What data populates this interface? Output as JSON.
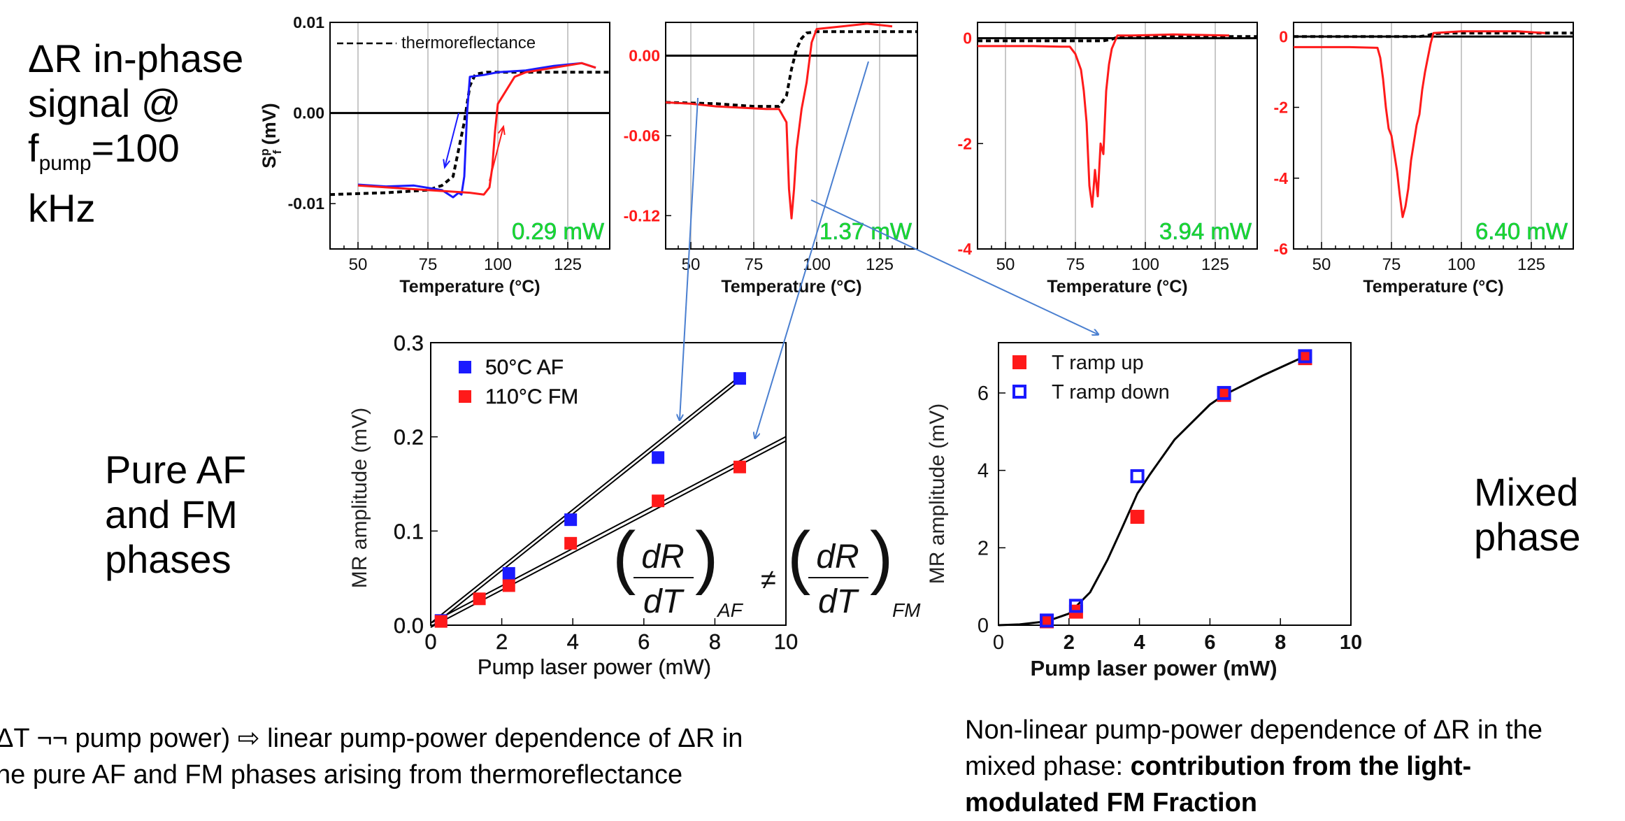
{
  "labels": {
    "top_left_l1": "ΔR in-phase",
    "top_left_l2": "signal @",
    "top_left_f": "f",
    "top_left_sub": "pump",
    "top_left_eq": "=100",
    "top_left_l4": "kHz",
    "pure_l1": "Pure AF",
    "pure_l2": "and FM",
    "pure_l3": "phases",
    "mixed_l1": "Mixed",
    "mixed_l2": "phase",
    "cap_left_l1": "ΔT ¬¬ pump power) ⇨ linear pump-power dependence of ΔR in",
    "cap_left_l2": "he pure AF and FM phases arising from thermoreflectance",
    "cap_right_l1": "Non-linear pump-power dependence of ΔR in the",
    "cap_right_l2a": "mixed phase: ",
    "cap_right_l2b": "contribution  from the light-",
    "cap_right_l3": "modulated FM Fraction"
  },
  "colors": {
    "red": "#ff1a1a",
    "blue": "#1a1aff",
    "green": "#22dd22",
    "arrow": "#4a7fd0"
  },
  "chart_data": [
    {
      "id": "top1",
      "type": "line",
      "xlabel": "Temperature (°C)",
      "ylabel": "S^p_f (mV)",
      "xlim": [
        40,
        140
      ],
      "ylim": [
        -0.015,
        0.01
      ],
      "xticks": [
        50,
        75,
        100,
        125
      ],
      "yticks": [
        0.01,
        0.0,
        -0.01
      ],
      "ytick_labels": [
        "0.01",
        "0.00",
        "-0.01"
      ],
      "legend": "thermoreflectance",
      "annotation": "0.29 mW",
      "series": [
        {
          "color": "blue",
          "x": [
            50,
            60,
            70,
            80,
            84,
            86,
            87,
            88,
            89,
            90,
            95,
            100,
            110,
            120,
            130,
            135
          ],
          "y": [
            -0.0079,
            -0.0081,
            -0.008,
            -0.0085,
            -0.0093,
            -0.0088,
            -0.009,
            -0.007,
            0.0,
            0.004,
            0.0042,
            0.0045,
            0.0047,
            0.0052,
            0.0055,
            0.005
          ]
        },
        {
          "color": "red",
          "x": [
            50,
            60,
            70,
            80,
            90,
            95,
            97,
            98,
            99,
            100,
            103,
            106,
            110,
            120,
            130,
            135
          ],
          "y": [
            -0.008,
            -0.0082,
            -0.0084,
            -0.0086,
            -0.0088,
            -0.009,
            -0.0082,
            -0.006,
            -0.002,
            0.001,
            0.0025,
            0.004,
            0.0045,
            0.005,
            0.0055,
            0.005
          ]
        }
      ],
      "dashed": {
        "x": [
          40,
          60,
          75,
          80,
          84,
          86,
          88,
          90,
          92,
          96,
          100,
          110,
          120,
          140
        ],
        "y": [
          -0.009,
          -0.0088,
          -0.0085,
          -0.008,
          -0.007,
          -0.004,
          -0.001,
          0.003,
          0.0043,
          0.0045,
          0.0045,
          0.0045,
          0.0045,
          0.0045
        ]
      },
      "arrows": [
        {
          "color": "blue",
          "x1": 86,
          "y1": 0.0,
          "x2": 81,
          "y2": -0.006
        },
        {
          "color": "red",
          "x1": 97,
          "y1": -0.0075,
          "x2": 102,
          "y2": -0.0015
        }
      ]
    },
    {
      "id": "top2",
      "type": "line",
      "xlabel": "Temperature (°C)",
      "ylabel": "",
      "xlim": [
        40,
        140
      ],
      "ylim": [
        -0.145,
        0.025
      ],
      "xticks": [
        50,
        75,
        100,
        125
      ],
      "yticks": [
        0.0,
        -0.06,
        -0.12
      ],
      "ytick_labels": [
        "0.00",
        "-0.06",
        "-0.12"
      ],
      "annotation": "1.37 mW",
      "series": [
        {
          "color": "red",
          "x": [
            40,
            50,
            60,
            70,
            80,
            85,
            88,
            89,
            90,
            91,
            92,
            94,
            96,
            98,
            100,
            110,
            120,
            130
          ],
          "y": [
            -0.035,
            -0.036,
            -0.038,
            -0.039,
            -0.04,
            -0.04,
            -0.05,
            -0.1,
            -0.122,
            -0.1,
            -0.07,
            -0.04,
            -0.02,
            0.01,
            0.02,
            0.022,
            0.024,
            0.022
          ]
        }
      ],
      "dashed": {
        "x": [
          40,
          60,
          75,
          85,
          88,
          90,
          92,
          94,
          96,
          100,
          110,
          140
        ],
        "y": [
          -0.035,
          -0.036,
          -0.038,
          -0.038,
          -0.03,
          -0.01,
          0.005,
          0.013,
          0.017,
          0.018,
          0.018,
          0.018
        ]
      }
    },
    {
      "id": "top3",
      "type": "line",
      "xlabel": "Temperature (°C)",
      "ylabel": "",
      "xlim": [
        40,
        140
      ],
      "ylim": [
        -4.0,
        0.3
      ],
      "xticks": [
        50,
        75,
        100,
        125
      ],
      "yticks": [
        0,
        -2,
        -4
      ],
      "ytick_labels": [
        "0",
        "-2",
        "-4"
      ],
      "annotation": "3.94 mW",
      "series": [
        {
          "color": "red",
          "x": [
            40,
            60,
            70,
            73,
            75,
            77,
            78,
            79,
            80,
            81,
            82,
            83,
            84,
            85,
            86,
            87,
            88,
            90,
            95,
            110,
            130
          ],
          "y": [
            -0.15,
            -0.15,
            -0.16,
            -0.16,
            -0.3,
            -0.6,
            -1.0,
            -1.6,
            -2.8,
            -3.2,
            -2.5,
            -3.0,
            -2.0,
            -2.2,
            -1.0,
            -0.5,
            -0.2,
            0.05,
            0.05,
            0.07,
            0.05
          ]
        }
      ],
      "dashed": {
        "x": [
          40,
          70,
          80,
          85,
          88,
          90,
          95,
          110,
          140
        ],
        "y": [
          -0.05,
          -0.05,
          -0.05,
          -0.05,
          -0.02,
          0.02,
          0.03,
          0.03,
          0.03
        ]
      }
    },
    {
      "id": "top4",
      "type": "line",
      "xlabel": "Temperature (°C)",
      "ylabel": "",
      "xlim": [
        40,
        140
      ],
      "ylim": [
        -6.0,
        0.4
      ],
      "xticks": [
        50,
        75,
        100,
        125
      ],
      "yticks": [
        0,
        -2,
        -4,
        -6
      ],
      "ytick_labels": [
        "0",
        "-2",
        "-4",
        "-6"
      ],
      "annotation": "6.40 mW",
      "series": [
        {
          "color": "red",
          "x": [
            40,
            60,
            70,
            71,
            72,
            73,
            74,
            75,
            76,
            77,
            78,
            79,
            80,
            81,
            82,
            83,
            84,
            85,
            86,
            87,
            88,
            89,
            90,
            100,
            120,
            130
          ],
          "y": [
            -0.3,
            -0.3,
            -0.32,
            -0.6,
            -1.2,
            -2.0,
            -2.6,
            -2.8,
            -3.3,
            -3.8,
            -4.5,
            -5.1,
            -4.8,
            -4.3,
            -3.5,
            -3.0,
            -2.5,
            -2.2,
            -1.5,
            -1.0,
            -0.6,
            -0.2,
            0.1,
            0.15,
            0.15,
            0.1
          ]
        }
      ],
      "dashed": {
        "x": [
          40,
          70,
          80,
          85,
          88,
          90,
          95,
          110,
          140
        ],
        "y": [
          0.0,
          0.0,
          0.0,
          0.0,
          0.03,
          0.08,
          0.1,
          0.1,
          0.1
        ]
      }
    },
    {
      "id": "bottom_left",
      "type": "scatter",
      "xlabel": "Pump laser power (mW)",
      "ylabel": "MR amplitude (mV)",
      "xlim": [
        0,
        10
      ],
      "ylim": [
        0,
        0.3
      ],
      "xticks": [
        0,
        2,
        4,
        6,
        8,
        10
      ],
      "yticks": [
        0.0,
        0.1,
        0.2,
        0.3
      ],
      "ytick_labels": [
        "0.0",
        "0.1",
        "0.2",
        "0.3"
      ],
      "series": [
        {
          "name": "50°C AF",
          "color": "blue",
          "x": [
            0.29,
            2.2,
            3.94,
            6.4,
            8.7
          ],
          "y": [
            0.005,
            0.055,
            0.112,
            0.178,
            0.262
          ]
        },
        {
          "name": "110°C FM",
          "color": "red",
          "x": [
            0.29,
            1.37,
            2.2,
            3.94,
            6.4,
            8.7
          ],
          "y": [
            0.004,
            0.028,
            0.042,
            0.087,
            0.132,
            0.168
          ]
        }
      ],
      "fit_lines": [
        {
          "x": [
            0,
            8.7
          ],
          "y": [
            0.0,
            0.262
          ]
        },
        {
          "x": [
            0,
            10
          ],
          "y": [
            0.0,
            0.198
          ]
        }
      ],
      "annotation": {
        "num": "dR",
        "den": "dT",
        "left_sub": "AF",
        "op": "≠",
        "right_sub": "FM"
      }
    },
    {
      "id": "bottom_right",
      "type": "scatter",
      "xlabel": "Pump laser power (mW)",
      "ylabel": "MR amplitude (mV)",
      "xlim": [
        0,
        10
      ],
      "ylim": [
        0,
        7.3
      ],
      "xticks": [
        0,
        2,
        4,
        6,
        8,
        10
      ],
      "yticks": [
        0,
        2,
        4,
        6
      ],
      "ytick_labels": [
        "0",
        "2",
        "4",
        "6"
      ],
      "series": [
        {
          "name": "T ramp up",
          "color": "red",
          "filled": true,
          "x": [
            1.37,
            2.2,
            3.94,
            6.4,
            8.7
          ],
          "y": [
            0.1,
            0.35,
            2.8,
            5.95,
            6.9
          ]
        },
        {
          "name": "T ramp down",
          "color": "blue",
          "filled": false,
          "x": [
            1.37,
            2.2,
            3.94,
            6.4,
            8.7
          ],
          "y": [
            0.12,
            0.5,
            3.85,
            6.0,
            6.95
          ]
        }
      ],
      "fit_curve": {
        "x": [
          0.0,
          0.6,
          1.37,
          2.0,
          2.6,
          3.1,
          3.5,
          3.94,
          4.3,
          5.0,
          6.0,
          6.4,
          7.5,
          8.7
        ],
        "y": [
          0.0,
          0.02,
          0.1,
          0.3,
          0.85,
          1.7,
          2.5,
          3.4,
          3.9,
          4.8,
          5.7,
          5.95,
          6.45,
          6.95
        ]
      }
    }
  ]
}
